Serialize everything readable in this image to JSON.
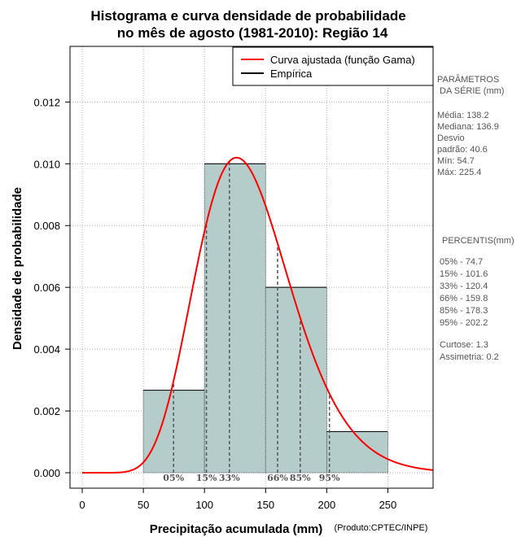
{
  "chart_data": {
    "type": "bar",
    "title_line1": "Histograma e curva densidade de probabilidade",
    "title_line2": "no mês de agosto (1981-2010): Região 14",
    "xlabel": "Precipitação acumulada (mm)",
    "ylabel": "Densidade de probabilidade",
    "credit": "(Produto:CPTEC/INPE)",
    "xlim": [
      -10,
      287
    ],
    "ylim": [
      -0.0005,
      0.0138
    ],
    "x_ticks": [
      0,
      50,
      100,
      150,
      200,
      250
    ],
    "x_tick_labels": [
      "0",
      "50",
      "100",
      "150",
      "200",
      "250"
    ],
    "y_ticks": [
      0.0,
      0.002,
      0.004,
      0.006,
      0.008,
      0.01,
      0.012
    ],
    "y_tick_labels": [
      "0.000",
      "0.002",
      "0.004",
      "0.006",
      "0.008",
      "0.010",
      "0.012"
    ],
    "bins": [
      {
        "start": 50,
        "end": 100,
        "density": 0.00267
      },
      {
        "start": 100,
        "end": 150,
        "density": 0.01
      },
      {
        "start": 150,
        "end": 200,
        "density": 0.006
      },
      {
        "start": 200,
        "end": 250,
        "density": 0.00133
      }
    ],
    "gamma_fit": {
      "mean": 138.2,
      "sd": 40.6
    },
    "percentile_marks": [
      {
        "label": "05%",
        "value": 74.7
      },
      {
        "label": "15%",
        "value": 101.6
      },
      {
        "label": "33%",
        "value": 120.4
      },
      {
        "label": "66%",
        "value": 159.8
      },
      {
        "label": "85%",
        "value": 178.3
      },
      {
        "label": "95%",
        "value": 202.2
      }
    ],
    "legend": {
      "fitted": "Curva ajustada (função Gama)",
      "empirical": "Empírica",
      "position": "top-right"
    },
    "colors": {
      "bar_fill": "#b4cdcb",
      "curve": "#ff0000",
      "grid": "#b0b0b0",
      "percentile_line": "#555555"
    }
  },
  "side_panel": {
    "params_title_1": "PARÂMETROS",
    "params_title_2": "DA SÉRIE (mm)",
    "media": "Média:  138.2",
    "mediana": "Mediana:  136.9",
    "desvio_1": "Desvio",
    "desvio_2": "padrão:  40.6",
    "min": "Mín:  54.7",
    "max": "Máx:  225.4",
    "percentis_title": "PERCENTIS(mm)",
    "p05": "05% -   74.7",
    "p15": "15% -   101.6",
    "p33": "33% -   120.4",
    "p66": "66% -   159.8",
    "p85": "85% -   178.3",
    "p95": "95% -   202.2",
    "curtose": "Curtose:  1.3",
    "assimetria": "Assimetria:  0.2"
  }
}
